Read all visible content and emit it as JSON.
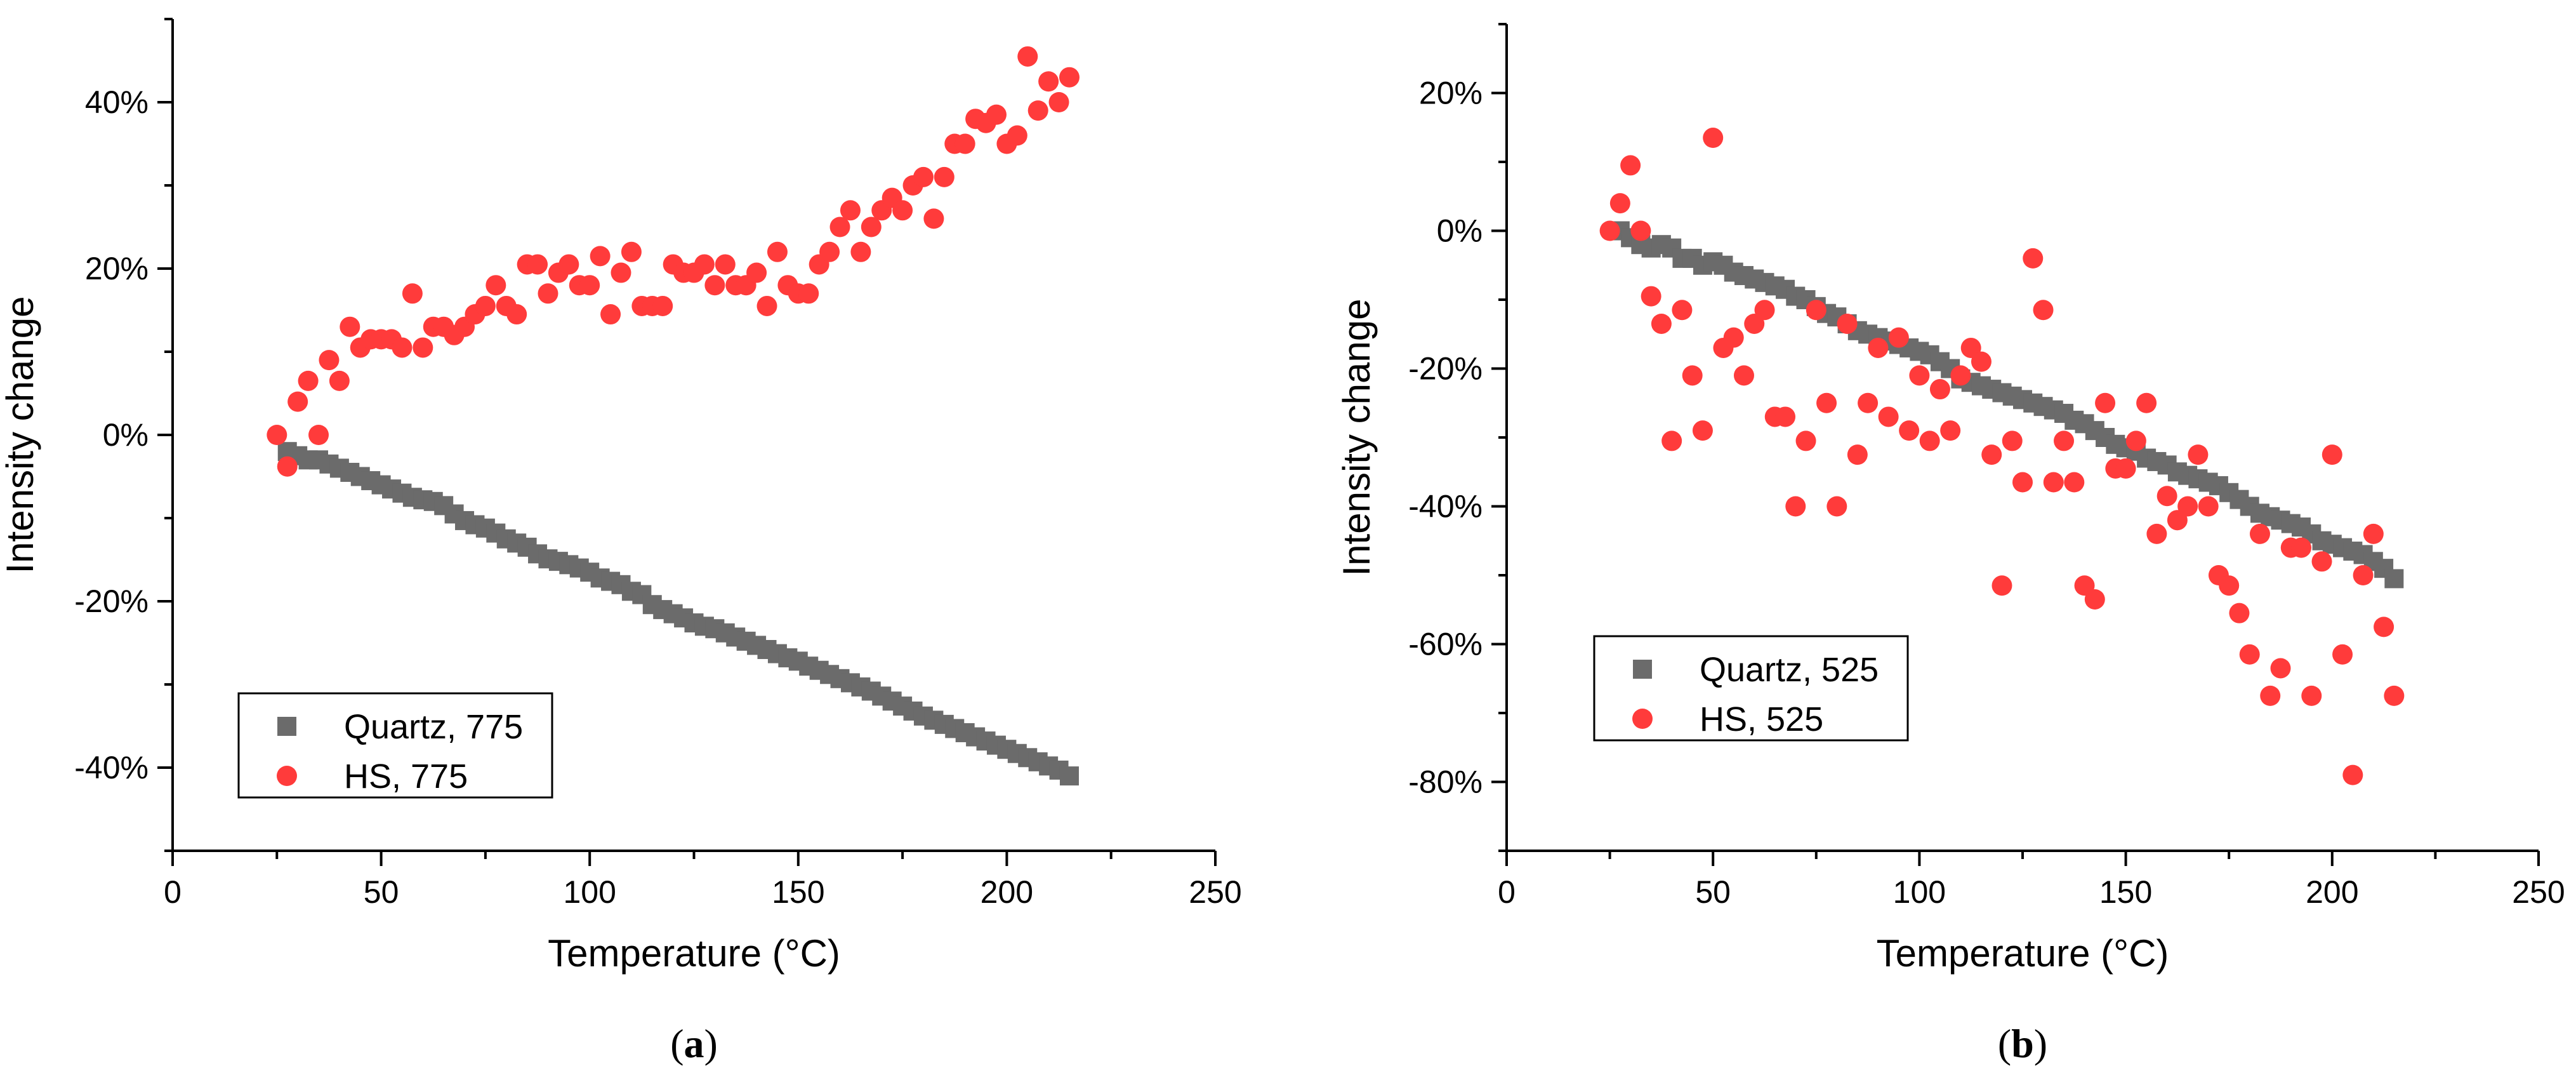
{
  "colors": {
    "quartz": "#6b6b6b",
    "hs": "#ff3b3b"
  },
  "chart_data": [
    {
      "type": "scatter",
      "caption_letter": "a",
      "xlabel": "Temperature (°C)",
      "ylabel": "Intensity change",
      "xlim": [
        0,
        250
      ],
      "ylim": [
        -50,
        50
      ],
      "xticks": [
        0,
        50,
        100,
        150,
        200,
        250
      ],
      "yticks": [
        -40,
        -20,
        0,
        20,
        40
      ],
      "ytick_labels": [
        "-40%",
        "-20%",
        "0%",
        "20%",
        "40%"
      ],
      "legend_position": "bottom-left",
      "series": [
        {
          "name": "Quartz, 775",
          "marker": "square",
          "color_key": "quartz",
          "x": [
            27.5,
            30,
            32.5,
            35,
            37.5,
            40,
            42.5,
            45,
            47.5,
            50,
            52.5,
            55,
            57.5,
            60,
            62.5,
            65,
            67.5,
            70,
            72.5,
            75,
            77.5,
            80,
            82.5,
            85,
            87.5,
            90,
            92.5,
            95,
            97.5,
            100,
            102.5,
            105,
            107.5,
            110,
            112.5,
            115,
            117.5,
            120,
            122.5,
            125,
            127.5,
            130,
            132.5,
            135,
            137.5,
            140,
            142.5,
            145,
            147.5,
            150,
            152.5,
            155,
            157.5,
            160,
            162.5,
            165,
            167.5,
            170,
            172.5,
            175,
            177.5,
            180,
            182.5,
            185,
            187.5,
            190,
            192.5,
            195,
            197.5,
            200,
            202.5,
            205,
            207.5,
            210,
            212.5,
            215
          ],
          "y": [
            -2.0,
            -2.5,
            -3.0,
            -3.0,
            -3.5,
            -4.0,
            -4.5,
            -5.0,
            -5.5,
            -6.0,
            -6.5,
            -7.0,
            -7.5,
            -7.8,
            -8.0,
            -8.5,
            -9.5,
            -10.3,
            -10.8,
            -11.2,
            -11.8,
            -12.5,
            -13.0,
            -13.5,
            -14.3,
            -14.9,
            -15.2,
            -15.6,
            -16.0,
            -16.5,
            -17.2,
            -17.6,
            -18.0,
            -18.8,
            -19.2,
            -20.4,
            -21.0,
            -21.5,
            -22.0,
            -22.6,
            -23.0,
            -23.3,
            -23.8,
            -24.3,
            -24.8,
            -25.3,
            -25.8,
            -26.3,
            -26.8,
            -27.2,
            -27.8,
            -28.3,
            -28.8,
            -29.3,
            -29.8,
            -30.3,
            -30.8,
            -31.4,
            -32.0,
            -32.6,
            -33.2,
            -33.8,
            -34.3,
            -34.8,
            -35.3,
            -35.8,
            -36.3,
            -36.8,
            -37.3,
            -37.8,
            -38.3,
            -38.8,
            -39.3,
            -39.8,
            -40.3,
            -41.0
          ]
        },
        {
          "name": "HS, 775",
          "marker": "circle",
          "color_key": "hs",
          "x": [
            25,
            27.5,
            30,
            32.5,
            35,
            37.5,
            40,
            42.5,
            45,
            47.5,
            50,
            52.5,
            55,
            57.5,
            60,
            62.5,
            65,
            67.5,
            70,
            72.5,
            75,
            77.5,
            80,
            82.5,
            85,
            87.5,
            90,
            92.5,
            95,
            97.5,
            100,
            102.5,
            105,
            107.5,
            110,
            112.5,
            115,
            117.5,
            120,
            122.5,
            125,
            127.5,
            130,
            132.5,
            135,
            137.5,
            140,
            142.5,
            145,
            147.5,
            150,
            152.5,
            155,
            157.5,
            160,
            162.5,
            165,
            167.5,
            170,
            172.5,
            175,
            177.5,
            180,
            182.5,
            185,
            187.5,
            190,
            192.5,
            195,
            197.5,
            200,
            202.5,
            205,
            207.5,
            210,
            212.5,
            215
          ],
          "y": [
            0,
            -3.8,
            4.0,
            6.5,
            0,
            9.0,
            6.5,
            13.0,
            10.5,
            11.5,
            11.5,
            11.5,
            10.5,
            17.0,
            10.5,
            13.0,
            13.0,
            12.0,
            13.0,
            14.5,
            15.5,
            18.0,
            15.5,
            14.5,
            20.5,
            20.5,
            17.0,
            19.5,
            20.5,
            18.0,
            18.0,
            21.5,
            14.5,
            19.5,
            22.0,
            15.5,
            15.5,
            15.5,
            20.5,
            19.5,
            19.5,
            20.5,
            18.0,
            20.5,
            18.0,
            18.0,
            19.5,
            15.5,
            22.0,
            18.0,
            17.0,
            17.0,
            20.5,
            22.0,
            25.0,
            27.0,
            22.0,
            25.0,
            27.0,
            28.5,
            27.0,
            30.0,
            31.0,
            26.0,
            31.0,
            35.0,
            35.0,
            38.0,
            37.5,
            38.5,
            35.0,
            36.0,
            45.5,
            39.0,
            42.5,
            40.0,
            43.0
          ]
        }
      ]
    },
    {
      "type": "scatter",
      "caption_letter": "b",
      "xlabel": "Temperature (°C)",
      "ylabel": "Intensity change",
      "xlim": [
        0,
        250
      ],
      "ylim": [
        -90,
        30
      ],
      "xticks": [
        0,
        50,
        100,
        150,
        200,
        250
      ],
      "yticks": [
        -80,
        -60,
        -40,
        -20,
        0,
        20
      ],
      "ytick_labels": [
        "-80%",
        "-60%",
        "-40%",
        "-20%",
        "0%",
        "20%"
      ],
      "legend_position": "lower-left",
      "series": [
        {
          "name": "Quartz, 525",
          "marker": "square",
          "color_key": "quartz",
          "x": [
            27.5,
            30,
            32.5,
            35,
            37.5,
            40,
            42.5,
            45,
            47.5,
            50,
            52.5,
            55,
            57.5,
            60,
            62.5,
            65,
            67.5,
            70,
            72.5,
            75,
            77.5,
            80,
            82.5,
            85,
            87.5,
            90,
            92.5,
            95,
            97.5,
            100,
            102.5,
            105,
            107.5,
            110,
            112.5,
            115,
            117.5,
            120,
            122.5,
            125,
            127.5,
            130,
            132.5,
            135,
            137.5,
            140,
            142.5,
            145,
            147.5,
            150,
            152.5,
            155,
            157.5,
            160,
            162.5,
            165,
            167.5,
            170,
            172.5,
            175,
            177.5,
            180,
            182.5,
            185,
            187.5,
            190,
            192.5,
            195,
            197.5,
            200,
            202.5,
            205,
            207.5,
            210,
            212.5,
            215
          ],
          "y": [
            0,
            -1.0,
            -2.0,
            -2.5,
            -2.0,
            -2.5,
            -4.0,
            -4.0,
            -5.0,
            -4.5,
            -5.0,
            -6.0,
            -6.5,
            -7.0,
            -7.5,
            -8.0,
            -8.5,
            -9.5,
            -10.0,
            -11.0,
            -12.0,
            -12.5,
            -13.5,
            -14.5,
            -15.0,
            -15.5,
            -16.0,
            -16.5,
            -17.0,
            -17.5,
            -18.0,
            -19.0,
            -20.0,
            -21.5,
            -22.0,
            -22.5,
            -23.0,
            -23.5,
            -24.0,
            -24.5,
            -25.0,
            -25.5,
            -26.0,
            -26.5,
            -27.5,
            -28.0,
            -29.0,
            -30.0,
            -31.0,
            -31.5,
            -32.0,
            -33.0,
            -33.5,
            -34.0,
            -35.0,
            -35.5,
            -36.0,
            -36.5,
            -37.0,
            -38.0,
            -39.0,
            -40.0,
            -41.0,
            -41.5,
            -42.0,
            -42.5,
            -43.0,
            -44.0,
            -45.0,
            -45.5,
            -46.0,
            -46.5,
            -47.0,
            -48.0,
            -49.0,
            -50.5
          ]
        },
        {
          "name": "HS, 525",
          "marker": "circle",
          "color_key": "hs",
          "x": [
            25,
            27.5,
            30,
            32.5,
            35,
            37.5,
            40,
            42.5,
            45,
            47.5,
            50,
            52.5,
            55,
            57.5,
            60,
            62.5,
            65,
            67.5,
            70,
            72.5,
            75,
            77.5,
            80,
            82.5,
            85,
            87.5,
            90,
            92.5,
            95,
            97.5,
            100,
            102.5,
            105,
            107.5,
            110,
            112.5,
            115,
            117.5,
            120,
            122.5,
            125,
            127.5,
            130,
            132.5,
            135,
            137.5,
            140,
            142.5,
            145,
            147.5,
            150,
            152.5,
            155,
            157.5,
            160,
            162.5,
            165,
            167.5,
            170,
            172.5,
            175,
            177.5,
            180,
            182.5,
            185,
            187.5,
            190,
            192.5,
            195,
            197.5,
            200,
            202.5,
            205,
            207.5,
            210,
            212.5,
            215
          ],
          "y": [
            0,
            4.0,
            9.5,
            0,
            -9.5,
            -13.5,
            -30.5,
            -11.5,
            -21.0,
            -29.0,
            13.5,
            -17.0,
            -15.5,
            -21.0,
            -13.5,
            -11.5,
            -27.0,
            -27.0,
            -40.0,
            -30.5,
            -11.5,
            -25.0,
            -40.0,
            -13.5,
            -32.5,
            -25.0,
            -17.0,
            -27.0,
            -15.5,
            -29.0,
            -21.0,
            -30.5,
            -23.0,
            -29.0,
            -21.0,
            -17.0,
            -19.0,
            -32.5,
            -51.5,
            -30.5,
            -36.5,
            -4.0,
            -11.5,
            -36.5,
            -30.5,
            -36.5,
            -51.5,
            -53.5,
            -25.0,
            -34.5,
            -34.5,
            -30.5,
            -25.0,
            -44.0,
            -38.5,
            -42.0,
            -40.0,
            -32.5,
            -40.0,
            -50.0,
            -51.5,
            -55.5,
            -61.5,
            -44.0,
            -67.5,
            -63.5,
            -46.0,
            -46.0,
            -67.5,
            -48.0,
            -32.5,
            -61.5,
            -79.0,
            -50.0,
            -44.0,
            -57.5,
            -67.5
          ]
        }
      ]
    }
  ]
}
